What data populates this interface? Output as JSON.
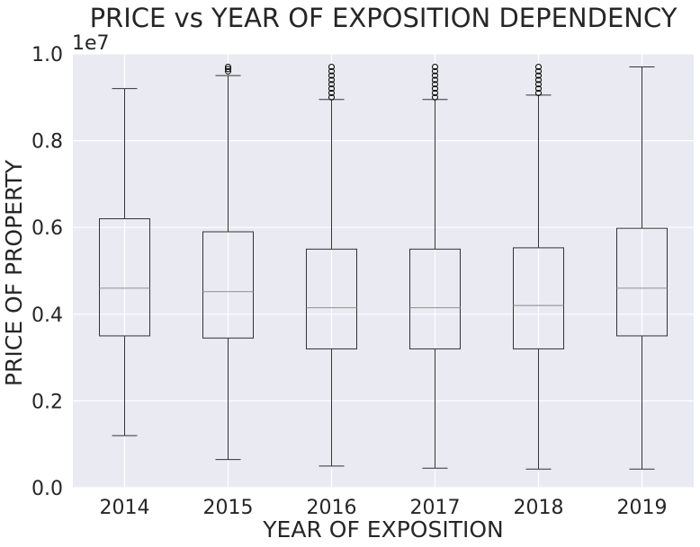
{
  "chart_data": {
    "type": "boxplot",
    "title": "PRICE vs YEAR OF EXPOSITION DEPENDENCY",
    "xlabel": "YEAR OF EXPOSITION",
    "ylabel": "PRICE OF PROPERTY",
    "y_offset_label": "1e7",
    "ylim": [
      0,
      1.0
    ],
    "y_ticks": [
      0.0,
      0.2,
      0.4,
      0.6,
      0.8,
      1.0
    ],
    "y_tick_labels": [
      "0.0",
      "0.2",
      "0.4",
      "0.6",
      "0.8",
      "1.0"
    ],
    "grid": true,
    "categories": [
      "2014",
      "2015",
      "2016",
      "2017",
      "2018",
      "2019"
    ],
    "boxes": [
      {
        "year": "2014",
        "whisker_low": 0.12,
        "q1": 0.35,
        "median": 0.46,
        "q3": 0.62,
        "whisker_high": 0.92,
        "outliers": []
      },
      {
        "year": "2015",
        "whisker_low": 0.065,
        "q1": 0.345,
        "median": 0.452,
        "q3": 0.59,
        "whisker_high": 0.95,
        "outliers": [
          0.96,
          0.965,
          0.97
        ]
      },
      {
        "year": "2016",
        "whisker_low": 0.05,
        "q1": 0.32,
        "median": 0.415,
        "q3": 0.55,
        "whisker_high": 0.895,
        "outliers": [
          0.9,
          0.91,
          0.92,
          0.93,
          0.94,
          0.95,
          0.96,
          0.97
        ]
      },
      {
        "year": "2017",
        "whisker_low": 0.045,
        "q1": 0.32,
        "median": 0.415,
        "q3": 0.55,
        "whisker_high": 0.895,
        "outliers": [
          0.9,
          0.91,
          0.92,
          0.93,
          0.94,
          0.95,
          0.96,
          0.97
        ]
      },
      {
        "year": "2018",
        "whisker_low": 0.043,
        "q1": 0.32,
        "median": 0.42,
        "q3": 0.553,
        "whisker_high": 0.905,
        "outliers": [
          0.91,
          0.92,
          0.93,
          0.94,
          0.95,
          0.96,
          0.97
        ]
      },
      {
        "year": "2019",
        "whisker_low": 0.043,
        "q1": 0.35,
        "median": 0.46,
        "q3": 0.598,
        "whisker_high": 0.97,
        "outliers": []
      }
    ],
    "colors": {
      "background": "#eaeaf2",
      "grid": "#ffffff",
      "box": "#333333",
      "median": "#999999",
      "text": "#262626"
    }
  }
}
